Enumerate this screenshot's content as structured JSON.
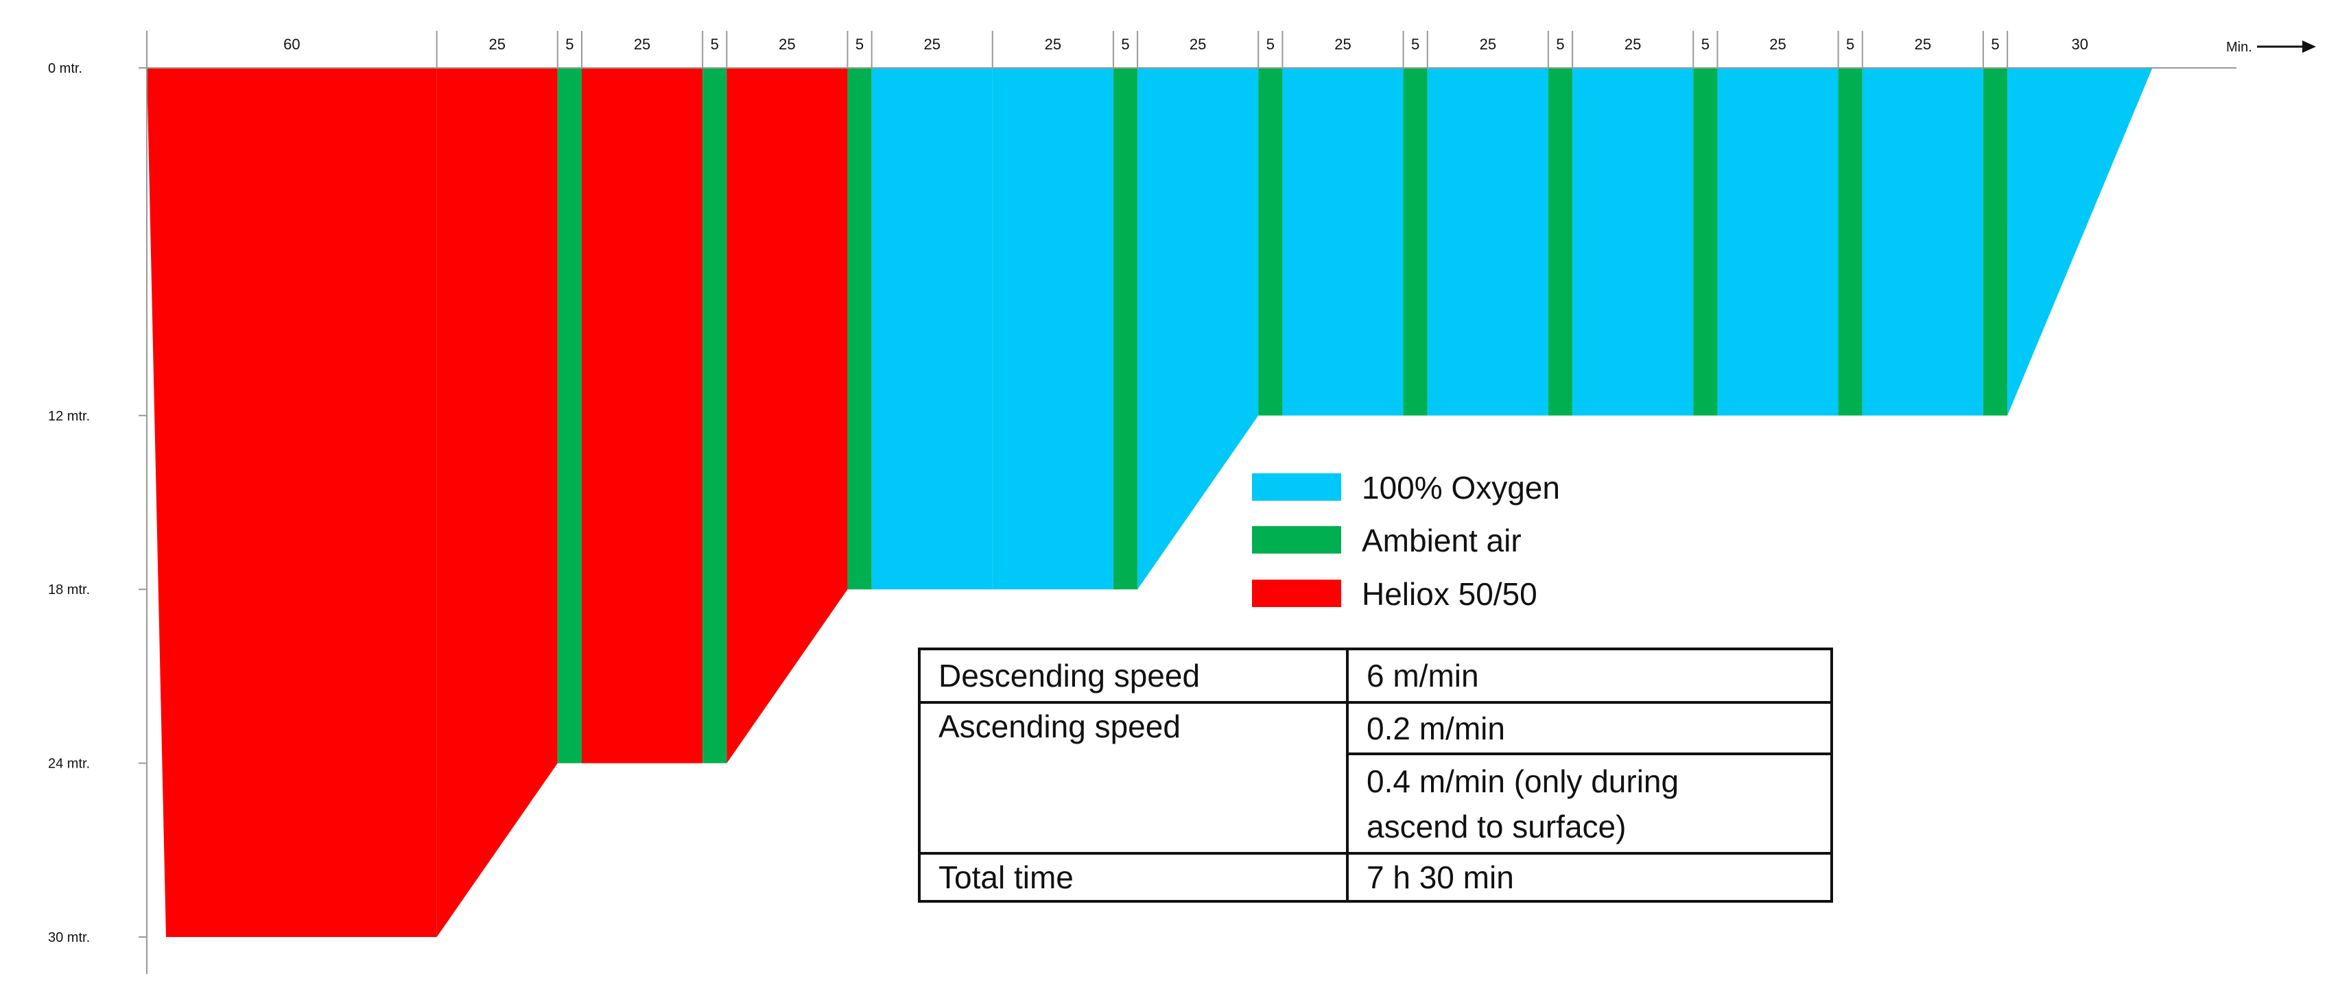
{
  "chart_data": {
    "type": "area",
    "title": "",
    "xlabel": "Min.",
    "ylabel": "",
    "depth_unit_suffix": "mtr.",
    "y_ticks": [
      0,
      12,
      18,
      24,
      30
    ],
    "ylim": [
      0,
      30
    ],
    "colors": {
      "oxygen": "#00C8F8",
      "air": "#00B050",
      "heliox": "#FF0000"
    },
    "legend": [
      {
        "key": "oxygen",
        "label": "100% Oxygen",
        "color": "#00C8F8"
      },
      {
        "key": "air",
        "label": "Ambient air",
        "color": "#00B050"
      },
      {
        "key": "heliox",
        "label": "Heliox 50/50",
        "color": "#FF0000"
      }
    ],
    "segments": [
      {
        "label": "60",
        "gas": "heliox",
        "depth": 30,
        "start_depth": 0
      },
      {
        "label": "25",
        "gas": "heliox",
        "depth": 30,
        "end_depth": 24
      },
      {
        "label": "5",
        "gas": "air",
        "depth": 24
      },
      {
        "label": "25",
        "gas": "heliox",
        "depth": 24
      },
      {
        "label": "5",
        "gas": "air",
        "depth": 24
      },
      {
        "label": "25",
        "gas": "heliox",
        "depth": 24,
        "end_depth": 18
      },
      {
        "label": "5",
        "gas": "air",
        "depth": 18
      },
      {
        "label": "25",
        "gas": "oxygen",
        "depth": 18
      },
      {
        "label": "25",
        "gas": "oxygen",
        "depth": 18
      },
      {
        "label": "5",
        "gas": "air",
        "depth": 18
      },
      {
        "label": "25",
        "gas": "oxygen",
        "depth": 18,
        "end_depth": 12
      },
      {
        "label": "5",
        "gas": "air",
        "depth": 12
      },
      {
        "label": "25",
        "gas": "oxygen",
        "depth": 12
      },
      {
        "label": "5",
        "gas": "air",
        "depth": 12
      },
      {
        "label": "25",
        "gas": "oxygen",
        "depth": 12
      },
      {
        "label": "5",
        "gas": "air",
        "depth": 12
      },
      {
        "label": "25",
        "gas": "oxygen",
        "depth": 12
      },
      {
        "label": "5",
        "gas": "air",
        "depth": 12
      },
      {
        "label": "25",
        "gas": "oxygen",
        "depth": 12
      },
      {
        "label": "5",
        "gas": "air",
        "depth": 12
      },
      {
        "label": "25",
        "gas": "oxygen",
        "depth": 12
      },
      {
        "label": "5",
        "gas": "air",
        "depth": 12
      },
      {
        "label": "30",
        "gas": "oxygen",
        "depth": 12,
        "end_depth": 0
      }
    ]
  },
  "info_table": {
    "descending_label": "Descending speed",
    "descending_value": "6 m/min",
    "ascending_label": "Ascending speed",
    "ascending_value": "0.2 m/min",
    "ascending_value_2_line1": "0.4 m/min (only during",
    "ascending_value_2_line2": "ascend to surface)",
    "total_label": "Total time",
    "total_value": "7 h 30 min"
  }
}
